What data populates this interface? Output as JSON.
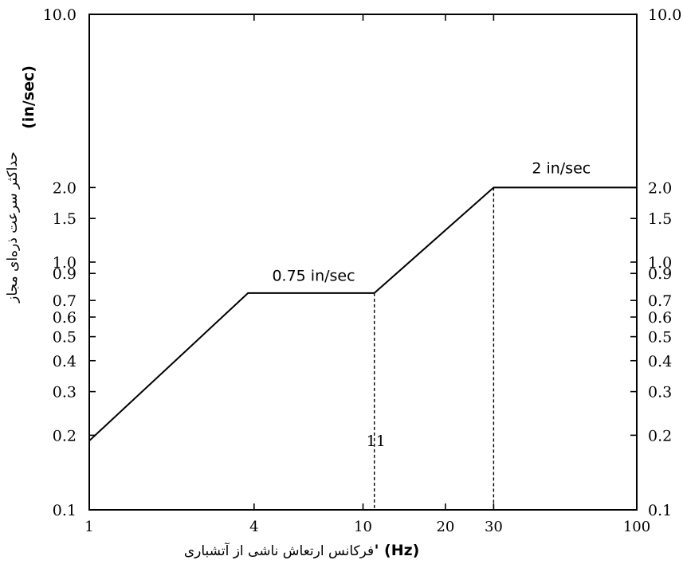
{
  "chart_data": {
    "type": "line",
    "x_scale": "log",
    "y_scale": "log",
    "xlim": [
      1,
      100
    ],
    "ylim": [
      0.1,
      10.0
    ],
    "x_ticks": [
      "1",
      "4",
      "10",
      "20",
      "30",
      "100"
    ],
    "y_ticks": [
      "0.1",
      "0.2",
      "0.3",
      "0.4",
      "0.5",
      "0.6",
      "0.7",
      "0.9",
      "1.0",
      "1.5",
      "2.0",
      "10.0"
    ],
    "y_ticks_right": [
      "0.1",
      "0.2",
      "0.3",
      "0.4",
      "0.5",
      "0.6",
      "0.7",
      "0.9",
      "1.0",
      "1.5",
      "2.0",
      "10.0"
    ],
    "xlabel": "فرکانس ارتعاش ناشی از آتشباری",
    "xlabel_unit": "' (Hz)",
    "ylabel": "حداکثر سرعت ذره‌ای مجاز",
    "ylabel_unit": "(in/sec)",
    "grid": false,
    "series": [
      {
        "x": [
          1,
          3.8,
          11,
          30,
          100
        ],
        "y": [
          0.19,
          0.75,
          0.75,
          2.0,
          2.0
        ]
      }
    ],
    "reference_lines": [
      {
        "x": 11,
        "y_top": 0.75,
        "label": "11"
      },
      {
        "x": 30,
        "y_top": 2.0,
        "label": ""
      }
    ],
    "annotations": [
      {
        "text": "0.75 in/sec",
        "x": 6.6,
        "y": 0.84
      },
      {
        "text": "2 in/sec",
        "x": 53,
        "y": 2.28
      }
    ]
  }
}
